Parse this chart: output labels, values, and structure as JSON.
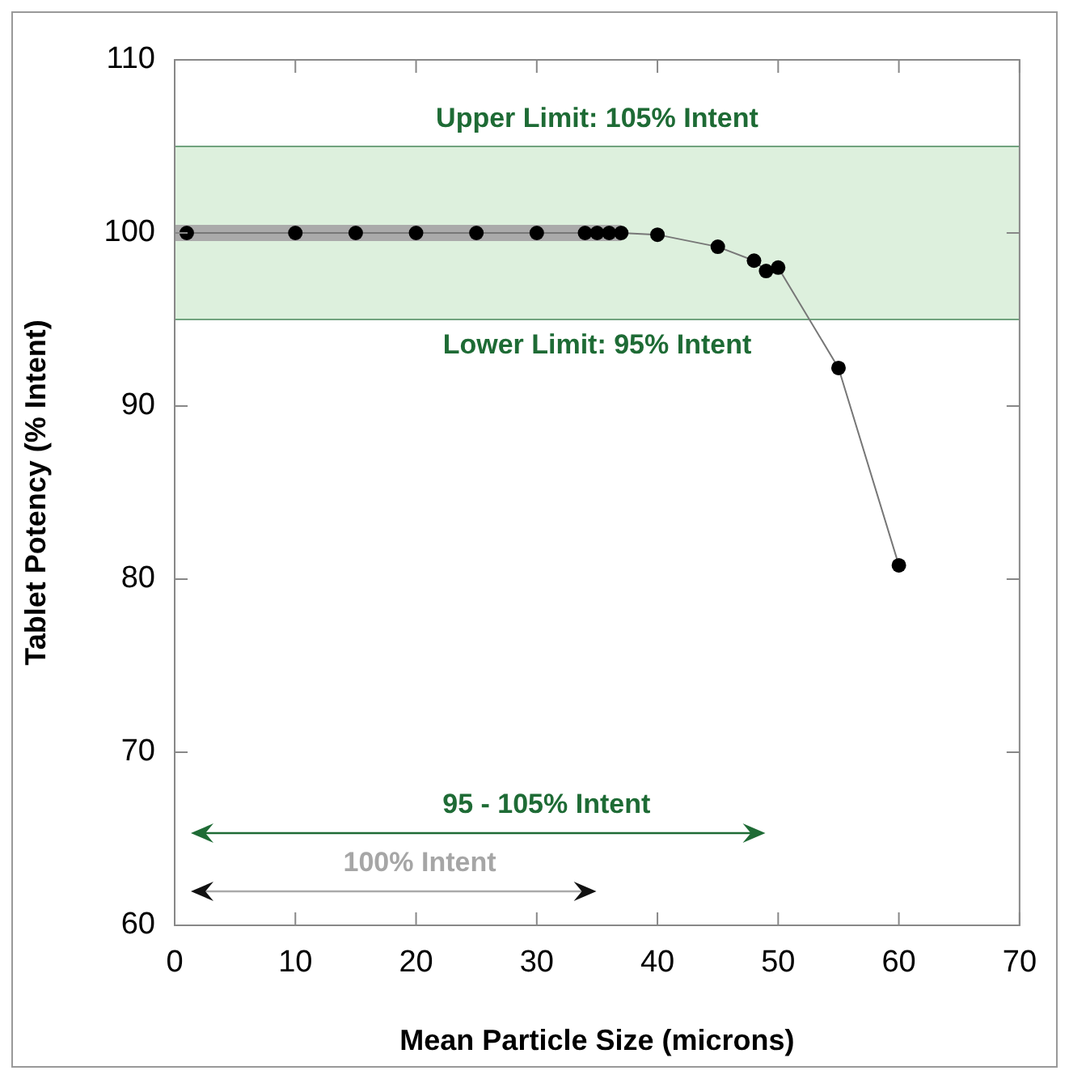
{
  "chart_data": {
    "type": "line",
    "xlabel": "Mean Particle Size (microns)",
    "ylabel": "Tablet Potency (% Intent)",
    "xlim": [
      0,
      70
    ],
    "xticks": [
      0,
      10,
      20,
      30,
      40,
      50,
      60,
      70
    ],
    "ylim": [
      60,
      110
    ],
    "yticks": [
      60,
      70,
      80,
      90,
      100,
      110
    ],
    "marker": "circle",
    "line_style": "solid",
    "series": [
      {
        "type": "line",
        "marker": "none",
        "color": "#aaaaaa",
        "x": [
          0,
          37
        ],
        "values": [
          100,
          100
        ]
      },
      {
        "color": "#000000",
        "x": [
          1,
          10,
          15,
          20,
          25,
          30,
          34,
          35,
          36,
          37,
          40,
          45,
          48,
          49,
          50,
          55,
          60
        ],
        "values": [
          100,
          100,
          100,
          100,
          100,
          100,
          100,
          100,
          100,
          100,
          99.9,
          99.2,
          98.4,
          97.8,
          98,
          92.2,
          80.8
        ]
      }
    ],
    "bands": [
      {
        "axis": "y",
        "from": 95,
        "to": 105,
        "color": "#d4ecd4"
      }
    ],
    "ref_lines": [
      {
        "axis": "y",
        "value": 105,
        "label": "Upper Limit: 105% Intent",
        "color": "#1e6b35"
      },
      {
        "axis": "y",
        "value": 95,
        "label": "Lower Limit: 95% Intent",
        "color": "#1e6b35"
      }
    ],
    "annotations": [
      "95 - 105% Intent",
      "100% Intent"
    ]
  }
}
